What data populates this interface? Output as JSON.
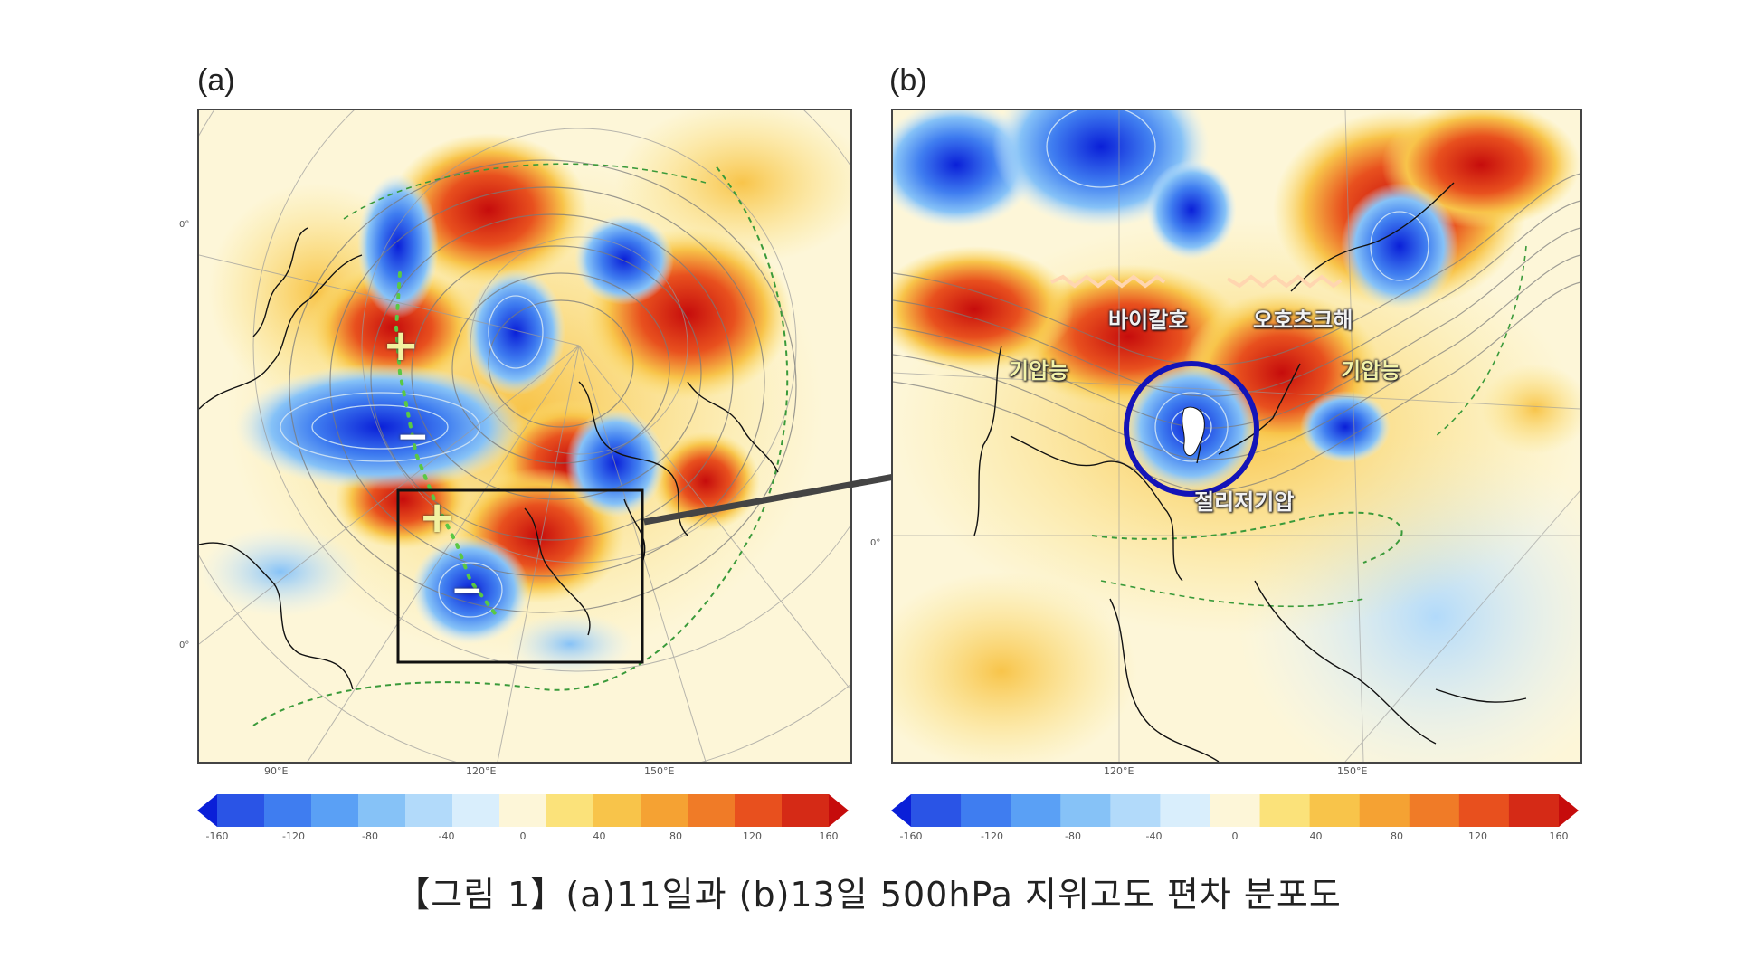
{
  "panel_a": {
    "label": "(a)",
    "lon_labels": [
      "90°E",
      "120°E",
      "150°E"
    ],
    "lat_labels": [
      "0°",
      "0°"
    ],
    "signs": [
      "+",
      "−",
      "+",
      "−"
    ]
  },
  "panel_b": {
    "label": "(b)",
    "lon_labels": [
      "120°E",
      "150°E"
    ],
    "lat_labels": [
      "0°"
    ],
    "annotations": {
      "baikal": "바이칼호",
      "okhotsk": "오호츠크해",
      "ridge_left": "기압능",
      "ridge_right": "기압능",
      "cutoff_low": "절리저기압"
    }
  },
  "colorbar": {
    "ticks": [
      "-160",
      "-120",
      "-80",
      "-40",
      "0",
      "40",
      "80",
      "120",
      "160"
    ],
    "colors": [
      "#0a1fd8",
      "#2a54e6",
      "#3f7df0",
      "#5aa0f5",
      "#86c2f7",
      "#b2dafa",
      "#d9eefc",
      "#fdf6d8",
      "#fbe27a",
      "#f8c44a",
      "#f5a233",
      "#f07b27",
      "#e8501e",
      "#d52a16",
      "#c60c0c"
    ]
  },
  "caption": "【그림 1】(a)11일과 (b)13일 500hPa 지위고도 편차 분포도"
}
